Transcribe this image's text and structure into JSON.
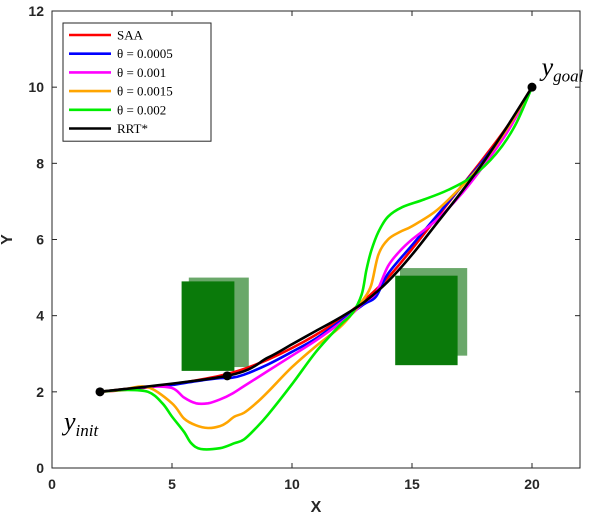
{
  "chart_data": {
    "type": "line",
    "title": "",
    "xlabel": "X",
    "ylabel": "Y",
    "xlim": [
      0,
      22
    ],
    "ylim": [
      0,
      12
    ],
    "xticks": [
      "0",
      "5",
      "10",
      "15",
      "20"
    ],
    "yticks": [
      "0",
      "2",
      "4",
      "6",
      "8",
      "10",
      "12"
    ],
    "grid": false,
    "legend_position": "top-left",
    "series": [
      {
        "name": "SAA",
        "color": "#ff0000",
        "points": [
          [
            2,
            2
          ],
          [
            3,
            2.05
          ],
          [
            4,
            2.12
          ],
          [
            5,
            2.2
          ],
          [
            6,
            2.3
          ],
          [
            7,
            2.42
          ],
          [
            8,
            2.6
          ],
          [
            9,
            2.85
          ],
          [
            10,
            3.15
          ],
          [
            11,
            3.5
          ],
          [
            12,
            3.9
          ],
          [
            13,
            4.4
          ],
          [
            14,
            5.0
          ],
          [
            15,
            5.75
          ],
          [
            16,
            6.55
          ],
          [
            17,
            7.35
          ],
          [
            18,
            8.15
          ],
          [
            19,
            9.0
          ],
          [
            20,
            10
          ]
        ]
      },
      {
        "name": "θ = 0.0005",
        "color": "#0000ff",
        "points": [
          [
            2,
            2
          ],
          [
            3,
            2.07
          ],
          [
            4,
            2.13
          ],
          [
            5,
            2.18
          ],
          [
            6,
            2.28
          ],
          [
            7,
            2.36
          ],
          [
            7.5,
            2.37
          ],
          [
            8,
            2.45
          ],
          [
            9,
            2.72
          ],
          [
            10,
            3.05
          ],
          [
            11,
            3.4
          ],
          [
            12,
            3.85
          ],
          [
            13,
            4.3
          ],
          [
            13.5,
            4.5
          ],
          [
            14,
            5.1
          ],
          [
            15,
            5.85
          ],
          [
            16,
            6.6
          ],
          [
            17,
            7.35
          ],
          [
            18,
            8.1
          ],
          [
            19,
            8.95
          ],
          [
            20,
            10
          ]
        ]
      },
      {
        "name": "θ = 0.001",
        "color": "#ff00ff",
        "points": [
          [
            2,
            2
          ],
          [
            3,
            2.07
          ],
          [
            4,
            2.14
          ],
          [
            5,
            2.1
          ],
          [
            5.5,
            1.85
          ],
          [
            6,
            1.7
          ],
          [
            6.5,
            1.7
          ],
          [
            7,
            1.8
          ],
          [
            7.5,
            1.95
          ],
          [
            8,
            2.15
          ],
          [
            9,
            2.55
          ],
          [
            10,
            2.95
          ],
          [
            11,
            3.35
          ],
          [
            12,
            3.8
          ],
          [
            12.5,
            4.05
          ],
          [
            13,
            4.35
          ],
          [
            13.5,
            4.6
          ],
          [
            14,
            5.3
          ],
          [
            14.5,
            5.7
          ],
          [
            15,
            6.0
          ],
          [
            16,
            6.5
          ],
          [
            17,
            7.15
          ],
          [
            18,
            7.95
          ],
          [
            19,
            8.85
          ],
          [
            20,
            10
          ]
        ]
      },
      {
        "name": "θ = 0.0015",
        "color": "#ffa500",
        "points": [
          [
            2,
            2
          ],
          [
            3,
            2.07
          ],
          [
            4,
            2.12
          ],
          [
            5,
            1.7
          ],
          [
            5.5,
            1.3
          ],
          [
            6,
            1.12
          ],
          [
            6.5,
            1.05
          ],
          [
            7,
            1.1
          ],
          [
            7.3,
            1.2
          ],
          [
            7.6,
            1.35
          ],
          [
            8,
            1.45
          ],
          [
            8.5,
            1.7
          ],
          [
            9,
            2.0
          ],
          [
            10,
            2.65
          ],
          [
            11,
            3.2
          ],
          [
            12,
            3.7
          ],
          [
            12.5,
            4.05
          ],
          [
            13,
            4.45
          ],
          [
            13.3,
            4.8
          ],
          [
            13.6,
            5.6
          ],
          [
            14,
            6.0
          ],
          [
            14.5,
            6.2
          ],
          [
            15,
            6.35
          ],
          [
            16,
            6.75
          ],
          [
            17,
            7.35
          ],
          [
            18,
            8.05
          ],
          [
            19,
            8.95
          ],
          [
            20,
            10
          ]
        ]
      },
      {
        "name": "θ = 0.002",
        "color": "#00ee00",
        "points": [
          [
            2,
            2
          ],
          [
            3,
            2.05
          ],
          [
            4,
            2.0
          ],
          [
            4.6,
            1.7
          ],
          [
            5,
            1.35
          ],
          [
            5.5,
            0.95
          ],
          [
            5.8,
            0.65
          ],
          [
            6.2,
            0.5
          ],
          [
            7,
            0.52
          ],
          [
            7.6,
            0.65
          ],
          [
            8,
            0.75
          ],
          [
            8.5,
            1.05
          ],
          [
            9,
            1.4
          ],
          [
            10,
            2.2
          ],
          [
            11,
            3.05
          ],
          [
            12,
            3.75
          ],
          [
            12.5,
            4.05
          ],
          [
            12.9,
            4.55
          ],
          [
            13.1,
            5.2
          ],
          [
            13.3,
            5.7
          ],
          [
            13.6,
            6.2
          ],
          [
            14,
            6.6
          ],
          [
            14.6,
            6.85
          ],
          [
            15.5,
            7.05
          ],
          [
            16.5,
            7.3
          ],
          [
            17.5,
            7.65
          ],
          [
            18.5,
            8.25
          ],
          [
            19.3,
            9.0
          ],
          [
            20,
            10
          ]
        ]
      },
      {
        "name": "RRT*",
        "color": "#000000",
        "points": [
          [
            2,
            2
          ],
          [
            7.3,
            2.42
          ],
          [
            9,
            2.9
          ],
          [
            10,
            3.25
          ],
          [
            11,
            3.6
          ],
          [
            12,
            3.95
          ],
          [
            13,
            4.35
          ],
          [
            14,
            4.9
          ],
          [
            15,
            5.6
          ],
          [
            16,
            6.4
          ],
          [
            17,
            7.2
          ],
          [
            18,
            8.05
          ],
          [
            19,
            9.0
          ],
          [
            20,
            10
          ]
        ]
      }
    ],
    "obstacles": [
      {
        "x": [
          5.7,
          8.2
        ],
        "y": [
          2.65,
          5.0
        ],
        "color": "#6aa86a"
      },
      {
        "x": [
          5.4,
          7.6
        ],
        "y": [
          2.55,
          4.9
        ],
        "color": "#0a7a0a"
      },
      {
        "x": [
          14.5,
          17.3
        ],
        "y": [
          2.95,
          5.25
        ],
        "color": "#6aa86a"
      },
      {
        "x": [
          14.3,
          16.9
        ],
        "y": [
          2.7,
          5.05
        ],
        "color": "#0a7a0a"
      }
    ],
    "markers": [
      {
        "x": 2,
        "y": 2
      },
      {
        "x": 7.3,
        "y": 2.42
      },
      {
        "x": 20,
        "y": 10
      }
    ],
    "annotations": [
      {
        "base": "y",
        "sub": "init",
        "x": 0.5,
        "y": 1.0
      },
      {
        "base": "y",
        "sub": "goal",
        "x": 20.4,
        "y": 10.3
      }
    ]
  }
}
